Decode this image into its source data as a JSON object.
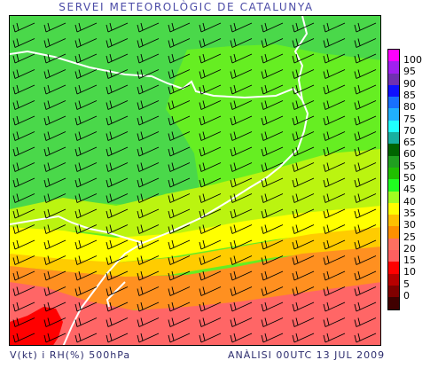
{
  "header": {
    "title": "SERVEI METEOROLÒGIC DE CATALUNYA"
  },
  "footer": {
    "left": "V(kt) i RH(%) 500hPa",
    "right": "ANÀLISI 00UTC 13 JUL 2009"
  },
  "legend": {
    "labels": [
      "100",
      "95",
      "90",
      "85",
      "80",
      "75",
      "70",
      "65",
      "60",
      "55",
      "50",
      "45",
      "40",
      "35",
      "30",
      "25",
      "20",
      "15",
      "10",
      "5",
      "0"
    ],
    "colors": [
      "#ff00ff",
      "#a020f0",
      "#7030b0",
      "#1010ff",
      "#1870ff",
      "#20b0ff",
      "#20ffff",
      "#18b0a0",
      "#006400",
      "#20a020",
      "#20c000",
      "#20ff20",
      "#a0ff20",
      "#ffff00",
      "#ffc000",
      "#ff9000",
      "#ff7060",
      "#ff6060",
      "#ff0000",
      "#b80000",
      "#800000",
      "#400000"
    ]
  },
  "map": {
    "colors": {
      "green_dark": "#4ad84a",
      "green": "#66ee22",
      "yellow_green": "#bbf410",
      "yellow": "#ffff00",
      "gold": "#ffcc00",
      "orange": "#ff9020",
      "salmon": "#ff6666",
      "red": "#ff0000",
      "border": "#ffffff",
      "barb": "#000000"
    }
  }
}
